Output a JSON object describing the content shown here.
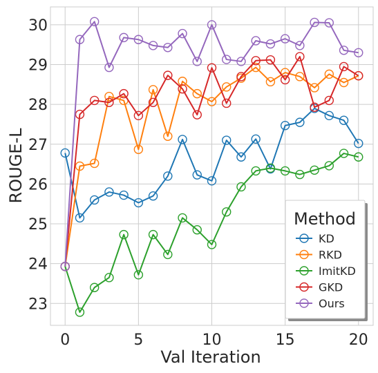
{
  "chart_data": {
    "type": "line",
    "xlabel": "Val Iteration",
    "ylabel": "ROUGE-L",
    "xlim": [
      -1,
      21
    ],
    "ylim": [
      22.45,
      30.45
    ],
    "xticks": [
      0,
      5,
      10,
      15,
      20
    ],
    "yticks": [
      23,
      24,
      25,
      26,
      27,
      28,
      29,
      30
    ],
    "grid": true,
    "legend": {
      "title": "Method",
      "placement": "lower-right"
    },
    "x": [
      0,
      1,
      2,
      3,
      4,
      5,
      6,
      7,
      8,
      9,
      10,
      11,
      12,
      13,
      14,
      15,
      16,
      17,
      18,
      19,
      20
    ],
    "series": [
      {
        "name": "KD",
        "color": "#1f77b4",
        "values": [
          26.78,
          25.15,
          25.6,
          25.8,
          25.72,
          25.53,
          25.7,
          26.2,
          27.12,
          26.23,
          26.08,
          27.1,
          26.68,
          27.13,
          26.38,
          27.47,
          27.55,
          27.9,
          27.72,
          27.6,
          27.02
        ]
      },
      {
        "name": "RKD",
        "color": "#ff7f0e",
        "values": [
          23.93,
          26.45,
          26.52,
          28.2,
          28.1,
          26.87,
          28.37,
          27.2,
          28.58,
          28.27,
          28.07,
          28.44,
          28.66,
          28.93,
          28.57,
          28.8,
          28.7,
          28.42,
          28.76,
          28.55,
          28.72
        ]
      },
      {
        "name": "ImitKD",
        "color": "#2ca02c",
        "values": [
          23.93,
          22.78,
          23.4,
          23.65,
          24.73,
          23.72,
          24.73,
          24.23,
          25.15,
          24.85,
          24.48,
          25.3,
          25.93,
          26.33,
          26.4,
          26.33,
          26.24,
          26.35,
          26.46,
          26.77,
          26.68
        ]
      },
      {
        "name": "GKD",
        "color": "#d62728",
        "values": [
          23.93,
          27.75,
          28.1,
          28.05,
          28.27,
          27.72,
          28.05,
          28.73,
          28.39,
          27.74,
          28.92,
          28.03,
          28.7,
          29.1,
          29.12,
          28.62,
          29.2,
          27.93,
          28.1,
          28.95,
          28.72
        ]
      },
      {
        "name": "Ours",
        "color": "#9467bd",
        "values": [
          23.93,
          29.63,
          30.08,
          28.93,
          29.68,
          29.63,
          29.48,
          29.43,
          29.78,
          29.08,
          30.0,
          29.13,
          29.08,
          29.6,
          29.52,
          29.65,
          29.48,
          30.06,
          30.05,
          29.36,
          29.3
        ]
      }
    ]
  }
}
